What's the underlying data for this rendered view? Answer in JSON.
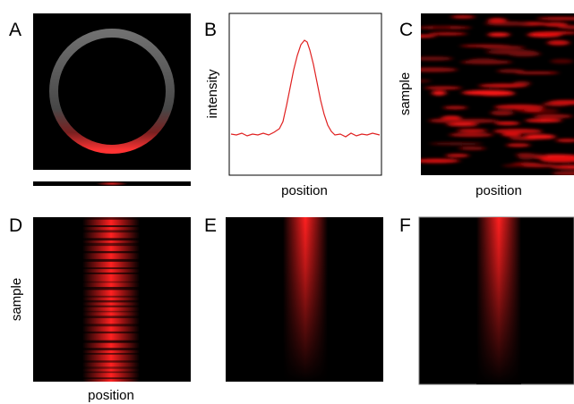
{
  "panels": [
    {
      "label": "A"
    },
    {
      "label": "B",
      "y_label": "intensity",
      "x_label": "position"
    },
    {
      "label": "C",
      "y_label": "sample",
      "x_label": "position"
    },
    {
      "label": "D",
      "y_label": "sample",
      "x_label": "position"
    },
    {
      "label": "E"
    },
    {
      "label": "F"
    }
  ]
}
